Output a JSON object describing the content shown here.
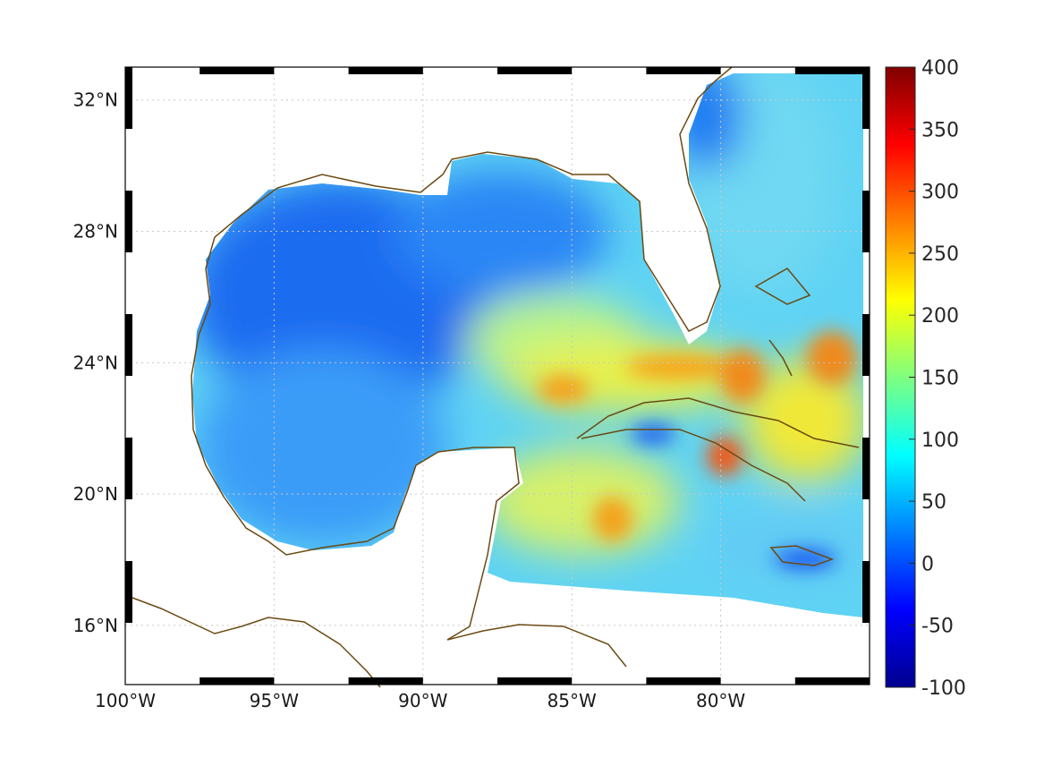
{
  "map": {
    "lon_range": [
      -100,
      -75
    ],
    "lat_range": [
      14.2,
      33
    ],
    "lon_ticks": [
      {
        "value": -100,
        "label": "100°W"
      },
      {
        "value": -95,
        "label": "95°W"
      },
      {
        "value": -90,
        "label": "90°W"
      },
      {
        "value": -85,
        "label": "85°W"
      },
      {
        "value": -80,
        "label": "80°W"
      }
    ],
    "lat_ticks": [
      {
        "value": 16,
        "label": "16°N"
      },
      {
        "value": 20,
        "label": "20°N"
      },
      {
        "value": 24,
        "label": "24°N"
      },
      {
        "value": 28,
        "label": "28°N"
      },
      {
        "value": 32,
        "label": "32°N"
      }
    ],
    "grid": "dotted",
    "coastline_color": "#6b4a12",
    "projection_frame": "alternating black/white border"
  },
  "colorbar": {
    "colormap": "jet",
    "range": [
      -100,
      400
    ],
    "ticks": [
      {
        "value": 400,
        "label": "400"
      },
      {
        "value": 350,
        "label": "350"
      },
      {
        "value": 300,
        "label": "300"
      },
      {
        "value": 250,
        "label": "250"
      },
      {
        "value": 200,
        "label": "200"
      },
      {
        "value": 150,
        "label": "150"
      },
      {
        "value": 100,
        "label": "100"
      },
      {
        "value": 50,
        "label": "50"
      },
      {
        "value": 0,
        "label": "0"
      },
      {
        "value": -50,
        "label": "-50"
      },
      {
        "value": -100,
        "label": "-100"
      }
    ]
  }
}
